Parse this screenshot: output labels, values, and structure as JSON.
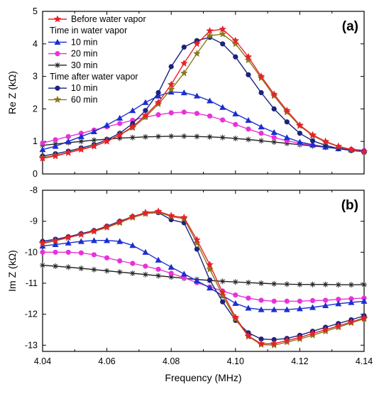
{
  "chart_data": [
    {
      "type": "line",
      "panel_label": "(a)",
      "ylabel": "Re Z (kΩ)",
      "xlabel": "",
      "xlim": [
        4.04,
        4.14
      ],
      "ylim": [
        0,
        5
      ],
      "x_ticks": [
        "4.04",
        "4.06",
        "4.08",
        "4.10",
        "4.12",
        "4.14"
      ],
      "y_ticks": [
        "0",
        "1",
        "2",
        "3",
        "4",
        "5"
      ],
      "legend": {
        "placement": "top-left",
        "entries": [
          {
            "type": "series",
            "series": 0,
            "label": "Before water vapor"
          },
          {
            "type": "header",
            "label": "Time in water vapor"
          },
          {
            "type": "series",
            "series": 1,
            "label": "10 min"
          },
          {
            "type": "series",
            "series": 2,
            "label": "20 min"
          },
          {
            "type": "series",
            "series": 3,
            "label": "30 min"
          },
          {
            "type": "header",
            "label": "Time after water vapor"
          },
          {
            "type": "series",
            "series": 4,
            "label": "10 min"
          },
          {
            "type": "series",
            "series": 5,
            "label": "60 min"
          }
        ]
      },
      "series": [
        {
          "name": "Before water vapor",
          "color": "#e8202a",
          "marker": "star",
          "x": [
            4.04,
            4.044,
            4.048,
            4.052,
            4.056,
            4.06,
            4.064,
            4.068,
            4.072,
            4.076,
            4.08,
            4.084,
            4.088,
            4.092,
            4.096,
            4.1,
            4.104,
            4.108,
            4.112,
            4.116,
            4.12,
            4.124,
            4.128,
            4.132,
            4.136,
            4.14
          ],
          "y": [
            0.48,
            0.55,
            0.65,
            0.75,
            0.85,
            1.0,
            1.2,
            1.45,
            1.8,
            2.2,
            2.75,
            3.4,
            4.0,
            4.4,
            4.45,
            4.1,
            3.6,
            3.0,
            2.45,
            1.95,
            1.5,
            1.2,
            1.0,
            0.85,
            0.75,
            0.68
          ]
        },
        {
          "name": "10 min",
          "color": "#1a2fd0",
          "marker": "triangle",
          "x": [
            4.04,
            4.044,
            4.048,
            4.052,
            4.056,
            4.06,
            4.064,
            4.068,
            4.072,
            4.076,
            4.08,
            4.084,
            4.088,
            4.092,
            4.096,
            4.1,
            4.104,
            4.108,
            4.112,
            4.116,
            4.12,
            4.124,
            4.128,
            4.132,
            4.136,
            4.14
          ],
          "y": [
            0.75,
            0.85,
            1.0,
            1.15,
            1.3,
            1.5,
            1.72,
            1.95,
            2.2,
            2.4,
            2.52,
            2.5,
            2.4,
            2.25,
            2.05,
            1.85,
            1.65,
            1.45,
            1.28,
            1.12,
            0.98,
            0.9,
            0.83,
            0.78,
            0.75,
            0.72
          ]
        },
        {
          "name": "20 min",
          "color": "#e832d8",
          "marker": "circle",
          "x": [
            4.04,
            4.044,
            4.048,
            4.052,
            4.056,
            4.06,
            4.064,
            4.068,
            4.072,
            4.076,
            4.08,
            4.084,
            4.088,
            4.092,
            4.096,
            4.1,
            4.104,
            4.108,
            4.112,
            4.116,
            4.12,
            4.124,
            4.128,
            4.132,
            4.136,
            4.14
          ],
          "y": [
            0.95,
            1.05,
            1.15,
            1.25,
            1.35,
            1.45,
            1.55,
            1.65,
            1.75,
            1.82,
            1.88,
            1.9,
            1.86,
            1.78,
            1.66,
            1.52,
            1.38,
            1.25,
            1.12,
            1.02,
            0.94,
            0.88,
            0.83,
            0.79,
            0.76,
            0.72
          ]
        },
        {
          "name": "30 min",
          "color": "#222222",
          "marker": "asterisk",
          "x": [
            4.04,
            4.044,
            4.048,
            4.052,
            4.056,
            4.06,
            4.064,
            4.068,
            4.072,
            4.076,
            4.08,
            4.084,
            4.088,
            4.092,
            4.096,
            4.1,
            4.104,
            4.108,
            4.112,
            4.116,
            4.12,
            4.124,
            4.128,
            4.132,
            4.136,
            4.14
          ],
          "y": [
            0.88,
            0.92,
            0.96,
            1.0,
            1.04,
            1.07,
            1.1,
            1.12,
            1.14,
            1.15,
            1.16,
            1.16,
            1.15,
            1.14,
            1.12,
            1.09,
            1.06,
            1.02,
            0.98,
            0.94,
            0.9,
            0.86,
            0.82,
            0.78,
            0.74,
            0.7
          ]
        },
        {
          "name": "10 min",
          "color": "#1a237e",
          "marker": "circle",
          "x": [
            4.04,
            4.044,
            4.048,
            4.052,
            4.056,
            4.06,
            4.064,
            4.068,
            4.072,
            4.076,
            4.08,
            4.084,
            4.088,
            4.092,
            4.096,
            4.1,
            4.104,
            4.108,
            4.112,
            4.116,
            4.12,
            4.124,
            4.128,
            4.132,
            4.136,
            4.14
          ],
          "y": [
            0.55,
            0.62,
            0.7,
            0.8,
            0.9,
            1.05,
            1.25,
            1.55,
            1.95,
            2.5,
            3.3,
            3.9,
            4.1,
            4.2,
            4.0,
            3.6,
            3.05,
            2.5,
            2.0,
            1.6,
            1.25,
            1.02,
            0.88,
            0.78,
            0.72,
            0.68
          ]
        },
        {
          "name": "60 min",
          "color": "#8a7a1a",
          "marker": "star",
          "x": [
            4.04,
            4.044,
            4.048,
            4.052,
            4.056,
            4.06,
            4.064,
            4.068,
            4.072,
            4.076,
            4.08,
            4.084,
            4.088,
            4.092,
            4.096,
            4.1,
            4.104,
            4.108,
            4.112,
            4.116,
            4.12,
            4.124,
            4.128,
            4.132,
            4.136,
            4.14
          ],
          "y": [
            0.5,
            0.57,
            0.66,
            0.76,
            0.86,
            1.0,
            1.2,
            1.42,
            1.75,
            2.15,
            2.6,
            3.1,
            3.7,
            4.25,
            4.3,
            4.0,
            3.5,
            2.95,
            2.4,
            1.9,
            1.48,
            1.18,
            0.98,
            0.84,
            0.74,
            0.68
          ]
        }
      ]
    },
    {
      "type": "line",
      "panel_label": "(b)",
      "ylabel": "Im Z (kΩ)",
      "xlabel": "Frequency (MHz)",
      "xlim": [
        4.04,
        4.14
      ],
      "ylim": [
        -13.2,
        -8
      ],
      "x_ticks": [
        "4.04",
        "4.06",
        "4.08",
        "4.10",
        "4.12",
        "4.14"
      ],
      "y_ticks": [
        "-8",
        "-9",
        "-10",
        "-11",
        "-12",
        "-13"
      ],
      "series": [
        {
          "name": "Before water vapor",
          "color": "#e8202a",
          "marker": "star",
          "x": [
            4.04,
            4.044,
            4.048,
            4.052,
            4.056,
            4.06,
            4.064,
            4.068,
            4.072,
            4.076,
            4.08,
            4.084,
            4.088,
            4.092,
            4.096,
            4.1,
            4.104,
            4.108,
            4.112,
            4.116,
            4.12,
            4.124,
            4.128,
            4.132,
            4.136,
            4.14
          ],
          "y": [
            -9.7,
            -9.62,
            -9.52,
            -9.42,
            -9.32,
            -9.18,
            -9.02,
            -8.85,
            -8.72,
            -8.68,
            -8.82,
            -8.88,
            -9.6,
            -10.4,
            -11.3,
            -12.1,
            -12.7,
            -12.95,
            -12.95,
            -12.85,
            -12.75,
            -12.62,
            -12.5,
            -12.38,
            -12.25,
            -12.12
          ]
        },
        {
          "name": "10 min",
          "color": "#1a2fd0",
          "marker": "triangle",
          "x": [
            4.04,
            4.044,
            4.048,
            4.052,
            4.056,
            4.06,
            4.064,
            4.068,
            4.072,
            4.076,
            4.08,
            4.084,
            4.088,
            4.092,
            4.096,
            4.1,
            4.104,
            4.108,
            4.112,
            4.116,
            4.12,
            4.124,
            4.128,
            4.132,
            4.136,
            4.14
          ],
          "y": [
            -9.8,
            -9.75,
            -9.7,
            -9.65,
            -9.62,
            -9.62,
            -9.65,
            -9.78,
            -10.0,
            -10.25,
            -10.48,
            -10.7,
            -10.92,
            -11.15,
            -11.4,
            -11.65,
            -11.8,
            -11.85,
            -11.85,
            -11.85,
            -11.82,
            -11.78,
            -11.72,
            -11.66,
            -11.62,
            -11.58
          ]
        },
        {
          "name": "20 min",
          "color": "#e832d8",
          "marker": "circle",
          "x": [
            4.04,
            4.044,
            4.048,
            4.052,
            4.056,
            4.06,
            4.064,
            4.068,
            4.072,
            4.076,
            4.08,
            4.084,
            4.088,
            4.092,
            4.096,
            4.1,
            4.104,
            4.108,
            4.112,
            4.116,
            4.12,
            4.124,
            4.128,
            4.132,
            4.136,
            4.14
          ],
          "y": [
            -10.0,
            -10.0,
            -10.0,
            -10.02,
            -10.08,
            -10.18,
            -10.28,
            -10.36,
            -10.45,
            -10.55,
            -10.68,
            -10.82,
            -10.98,
            -11.12,
            -11.25,
            -11.38,
            -11.48,
            -11.55,
            -11.58,
            -11.58,
            -11.58,
            -11.56,
            -11.55,
            -11.52,
            -11.5,
            -11.48
          ]
        },
        {
          "name": "30 min",
          "color": "#222222",
          "marker": "asterisk",
          "x": [
            4.04,
            4.044,
            4.048,
            4.052,
            4.056,
            4.06,
            4.064,
            4.068,
            4.072,
            4.076,
            4.08,
            4.084,
            4.088,
            4.092,
            4.096,
            4.1,
            4.104,
            4.108,
            4.112,
            4.116,
            4.12,
            4.124,
            4.128,
            4.132,
            4.136,
            4.14
          ],
          "y": [
            -10.42,
            -10.45,
            -10.48,
            -10.52,
            -10.56,
            -10.6,
            -10.64,
            -10.68,
            -10.72,
            -10.76,
            -10.8,
            -10.84,
            -10.88,
            -10.91,
            -10.94,
            -10.96,
            -10.98,
            -11.0,
            -11.02,
            -11.03,
            -11.04,
            -11.04,
            -11.04,
            -11.05,
            -11.05,
            -11.05
          ]
        },
        {
          "name": "10 min",
          "color": "#1a237e",
          "marker": "circle",
          "x": [
            4.04,
            4.044,
            4.048,
            4.052,
            4.056,
            4.06,
            4.064,
            4.068,
            4.072,
            4.076,
            4.08,
            4.084,
            4.088,
            4.092,
            4.096,
            4.1,
            4.104,
            4.108,
            4.112,
            4.116,
            4.12,
            4.124,
            4.128,
            4.132,
            4.136,
            4.14
          ],
          "y": [
            -9.65,
            -9.58,
            -9.5,
            -9.4,
            -9.3,
            -9.16,
            -9.0,
            -8.85,
            -8.75,
            -8.72,
            -8.95,
            -9.05,
            -9.9,
            -10.9,
            -11.6,
            -12.2,
            -12.6,
            -12.8,
            -12.82,
            -12.78,
            -12.68,
            -12.55,
            -12.42,
            -12.3,
            -12.18,
            -12.05
          ]
        },
        {
          "name": "60 min",
          "color": "#8a7a1a",
          "marker": "star",
          "x": [
            4.04,
            4.044,
            4.048,
            4.052,
            4.056,
            4.06,
            4.064,
            4.068,
            4.072,
            4.076,
            4.08,
            4.084,
            4.088,
            4.092,
            4.096,
            4.1,
            4.104,
            4.108,
            4.112,
            4.116,
            4.12,
            4.124,
            4.128,
            4.132,
            4.136,
            4.14
          ],
          "y": [
            -9.72,
            -9.63,
            -9.53,
            -9.43,
            -9.33,
            -9.2,
            -9.05,
            -8.88,
            -8.76,
            -8.7,
            -8.85,
            -8.92,
            -9.7,
            -10.55,
            -11.4,
            -12.15,
            -12.72,
            -12.98,
            -13.0,
            -12.9,
            -12.8,
            -12.68,
            -12.55,
            -12.42,
            -12.28,
            -12.15
          ]
        }
      ]
    }
  ]
}
